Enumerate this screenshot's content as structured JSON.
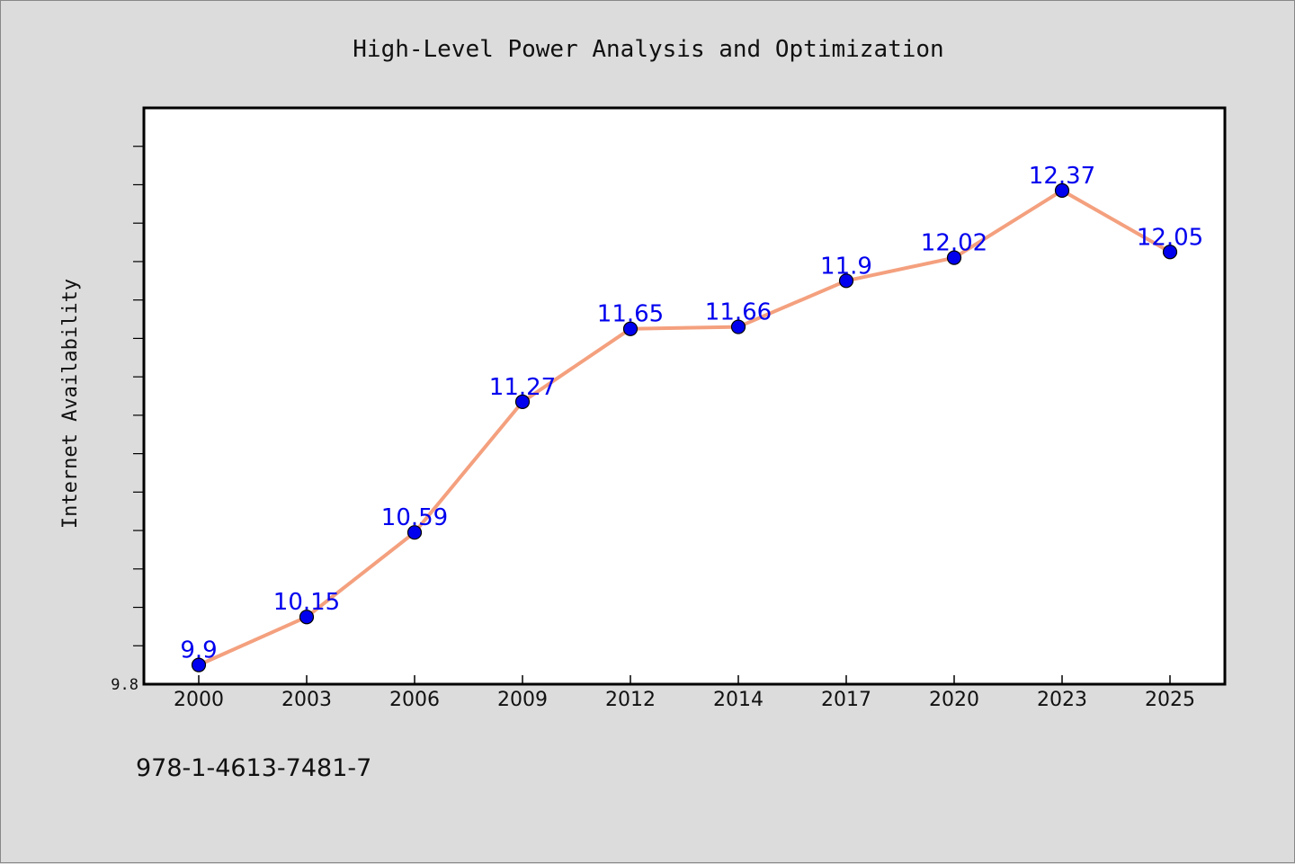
{
  "chart_data": {
    "type": "line",
    "title": "High-Level Power Analysis and Optimization",
    "xlabel": "",
    "ylabel": "Internet Availability",
    "categories": [
      "2000",
      "2003",
      "2006",
      "2009",
      "2012",
      "2014",
      "2017",
      "2020",
      "2023",
      "2025"
    ],
    "series": [
      {
        "values": [
          9.9,
          10.15,
          10.59,
          11.27,
          11.65,
          11.66,
          11.9,
          12.02,
          12.37,
          12.05
        ],
        "data_labels": [
          "9.9",
          "10.15",
          "10.59",
          "11.27",
          "11.65",
          "11.66",
          "11.9",
          "12.02",
          "12.37",
          "12.05"
        ]
      }
    ],
    "y_tick_labels": [
      "9.8"
    ],
    "ylim": [
      9.8,
      12.8
    ],
    "grid": false,
    "line_color": "#f4a07e",
    "marker_color": "#0000ee",
    "label_color": "#0000ee"
  },
  "footer": {
    "isbn": "978-1-4613-7481-7"
  }
}
